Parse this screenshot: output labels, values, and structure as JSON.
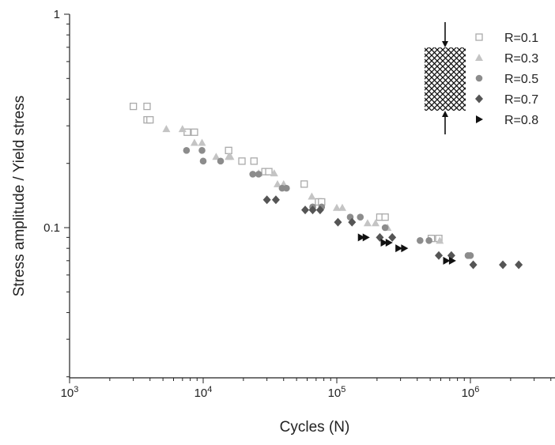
{
  "chart_data": {
    "type": "scatter",
    "xlabel": "Cycles (N)",
    "ylabel": "Stress amplitude / Yield stress",
    "xscale": "log",
    "yscale": "log",
    "xlim": [
      1000,
      5000000
    ],
    "ylim": [
      0.02,
      1
    ],
    "grid": false,
    "legend_position": "top-right",
    "x_ticks": [
      {
        "value": 1000,
        "base": "10",
        "exp": "3"
      },
      {
        "value": 10000,
        "base": "10",
        "exp": "4"
      },
      {
        "value": 100000,
        "base": "10",
        "exp": "5"
      },
      {
        "value": 1000000,
        "base": "10",
        "exp": "6"
      }
    ],
    "y_ticks": [
      {
        "value": 0.1,
        "label": "0.1"
      },
      {
        "value": 1,
        "label": "1"
      }
    ],
    "series": [
      {
        "name": "R=0.1",
        "marker": "open-square",
        "color": "#aaaaaa",
        "points": [
          [
            3000,
            0.37
          ],
          [
            3800,
            0.37
          ],
          [
            3800,
            0.32
          ],
          [
            4000,
            0.32
          ],
          [
            7600,
            0.28
          ],
          [
            8600,
            0.28
          ],
          [
            15500,
            0.23
          ],
          [
            19500,
            0.205
          ],
          [
            24000,
            0.205
          ],
          [
            29000,
            0.183
          ],
          [
            31000,
            0.183
          ],
          [
            57000,
            0.16
          ],
          [
            73000,
            0.132
          ],
          [
            77000,
            0.132
          ],
          [
            210000,
            0.112
          ],
          [
            230000,
            0.112
          ],
          [
            510000,
            0.089
          ],
          [
            580000,
            0.089
          ]
        ]
      },
      {
        "name": "R=0.3",
        "marker": "triangle",
        "color": "#c4c4c4",
        "points": [
          [
            5300,
            0.29
          ],
          [
            7000,
            0.29
          ],
          [
            8600,
            0.25
          ],
          [
            9800,
            0.25
          ],
          [
            12500,
            0.215
          ],
          [
            15500,
            0.215
          ],
          [
            16000,
            0.215
          ],
          [
            26000,
            0.18
          ],
          [
            34000,
            0.18
          ],
          [
            36000,
            0.16
          ],
          [
            40000,
            0.16
          ],
          [
            65000,
            0.14
          ],
          [
            100000,
            0.124
          ],
          [
            110000,
            0.124
          ],
          [
            170000,
            0.105
          ],
          [
            195000,
            0.105
          ],
          [
            240000,
            0.1
          ],
          [
            590000,
            0.087
          ]
        ]
      },
      {
        "name": "R=0.5",
        "marker": "circle",
        "color": "#8c8c8c",
        "points": [
          [
            7500,
            0.23
          ],
          [
            9800,
            0.23
          ],
          [
            10000,
            0.205
          ],
          [
            13500,
            0.205
          ],
          [
            23500,
            0.178
          ],
          [
            26000,
            0.178
          ],
          [
            39000,
            0.153
          ],
          [
            42000,
            0.153
          ],
          [
            66000,
            0.125
          ],
          [
            77000,
            0.125
          ],
          [
            126000,
            0.112
          ],
          [
            150000,
            0.112
          ],
          [
            230000,
            0.1
          ],
          [
            420000,
            0.087
          ],
          [
            490000,
            0.087
          ],
          [
            960000,
            0.074
          ],
          [
            1000000,
            0.074
          ]
        ]
      },
      {
        "name": "R=0.7",
        "marker": "diamond",
        "color": "#555555",
        "points": [
          [
            30000,
            0.135
          ],
          [
            35000,
            0.135
          ],
          [
            58000,
            0.121
          ],
          [
            66000,
            0.121
          ],
          [
            75000,
            0.121
          ],
          [
            102000,
            0.106
          ],
          [
            130000,
            0.106
          ],
          [
            210000,
            0.09
          ],
          [
            260000,
            0.09
          ],
          [
            580000,
            0.074
          ],
          [
            720000,
            0.074
          ],
          [
            1050000,
            0.067
          ],
          [
            1750000,
            0.067
          ],
          [
            2300000,
            0.067
          ]
        ]
      },
      {
        "name": "R=0.8",
        "marker": "right-triangle",
        "color": "#111111",
        "points": [
          [
            152000,
            0.09
          ],
          [
            165000,
            0.09
          ],
          [
            225000,
            0.085
          ],
          [
            245000,
            0.085
          ],
          [
            290000,
            0.08
          ],
          [
            320000,
            0.08
          ],
          [
            660000,
            0.07
          ],
          [
            730000,
            0.07
          ]
        ]
      }
    ]
  }
}
